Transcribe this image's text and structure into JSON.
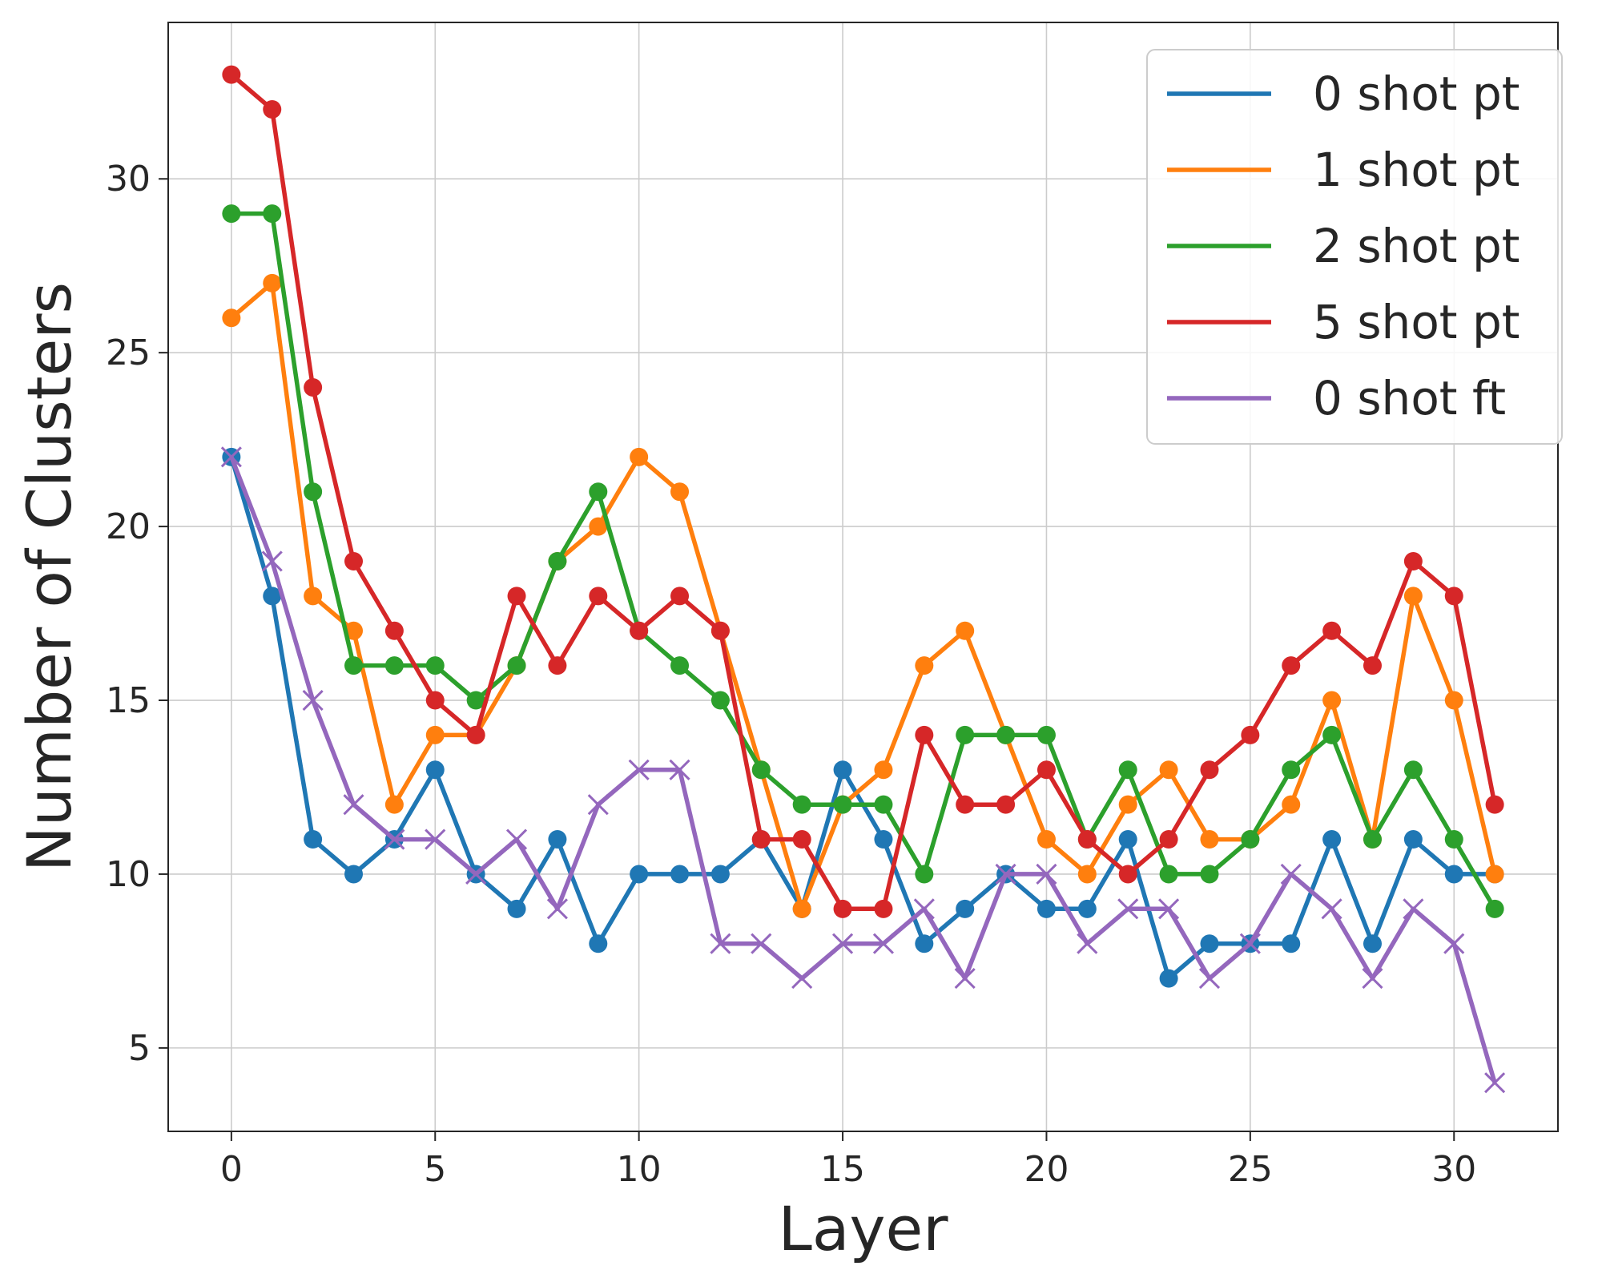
{
  "chart_data": {
    "type": "line",
    "title": "",
    "xlabel": "Layer",
    "ylabel": "Number of Clusters",
    "xlim": [
      -1.55,
      32.55
    ],
    "ylim": [
      2.6,
      34.5
    ],
    "xticks": [
      0,
      5,
      10,
      15,
      20,
      25,
      30
    ],
    "yticks": [
      5,
      10,
      15,
      20,
      25,
      30
    ],
    "grid": true,
    "legend_position": "top-right",
    "x": [
      0,
      1,
      2,
      3,
      4,
      5,
      6,
      7,
      8,
      9,
      10,
      11,
      12,
      13,
      14,
      15,
      16,
      17,
      18,
      19,
      20,
      21,
      22,
      23,
      24,
      25,
      26,
      27,
      28,
      29,
      30,
      31
    ],
    "series": [
      {
        "name": "0 shot pt",
        "color": "#1f77b4",
        "marker": "circle",
        "values": [
          22,
          18,
          11,
          10,
          11,
          13,
          10,
          9,
          11,
          8,
          10,
          10,
          10,
          11,
          9,
          13,
          11,
          8,
          9,
          10,
          9,
          9,
          11,
          7,
          8,
          8,
          8,
          11,
          8,
          11,
          10,
          10
        ]
      },
      {
        "name": "1 shot pt",
        "color": "#ff7f0e",
        "marker": "circle",
        "values": [
          26,
          27,
          18,
          17,
          12,
          14,
          14,
          16,
          19,
          20,
          22,
          21,
          17,
          13,
          9,
          12,
          13,
          16,
          17,
          14,
          11,
          10,
          12,
          13,
          11,
          11,
          12,
          15,
          11,
          18,
          15,
          10
        ]
      },
      {
        "name": "2 shot pt",
        "color": "#2ca02c",
        "marker": "circle",
        "values": [
          29,
          29,
          21,
          16,
          16,
          16,
          15,
          16,
          19,
          21,
          17,
          16,
          15,
          13,
          12,
          12,
          12,
          10,
          14,
          14,
          14,
          11,
          13,
          10,
          10,
          11,
          13,
          14,
          11,
          13,
          11,
          9
        ]
      },
      {
        "name": "5 shot pt",
        "color": "#d62728",
        "marker": "circle",
        "values": [
          33,
          32,
          24,
          19,
          17,
          15,
          14,
          18,
          16,
          18,
          17,
          18,
          17,
          11,
          11,
          9,
          9,
          14,
          12,
          12,
          13,
          11,
          10,
          11,
          13,
          14,
          16,
          17,
          16,
          19,
          18,
          12
        ]
      },
      {
        "name": "0 shot ft",
        "color": "#9467bd",
        "marker": "x",
        "values": [
          22,
          19,
          15,
          12,
          11,
          11,
          10,
          11,
          9,
          12,
          13,
          13,
          8,
          8,
          7,
          8,
          8,
          9,
          7,
          10,
          10,
          8,
          9,
          9,
          7,
          8,
          10,
          9,
          7,
          9,
          8,
          4
        ]
      }
    ]
  }
}
